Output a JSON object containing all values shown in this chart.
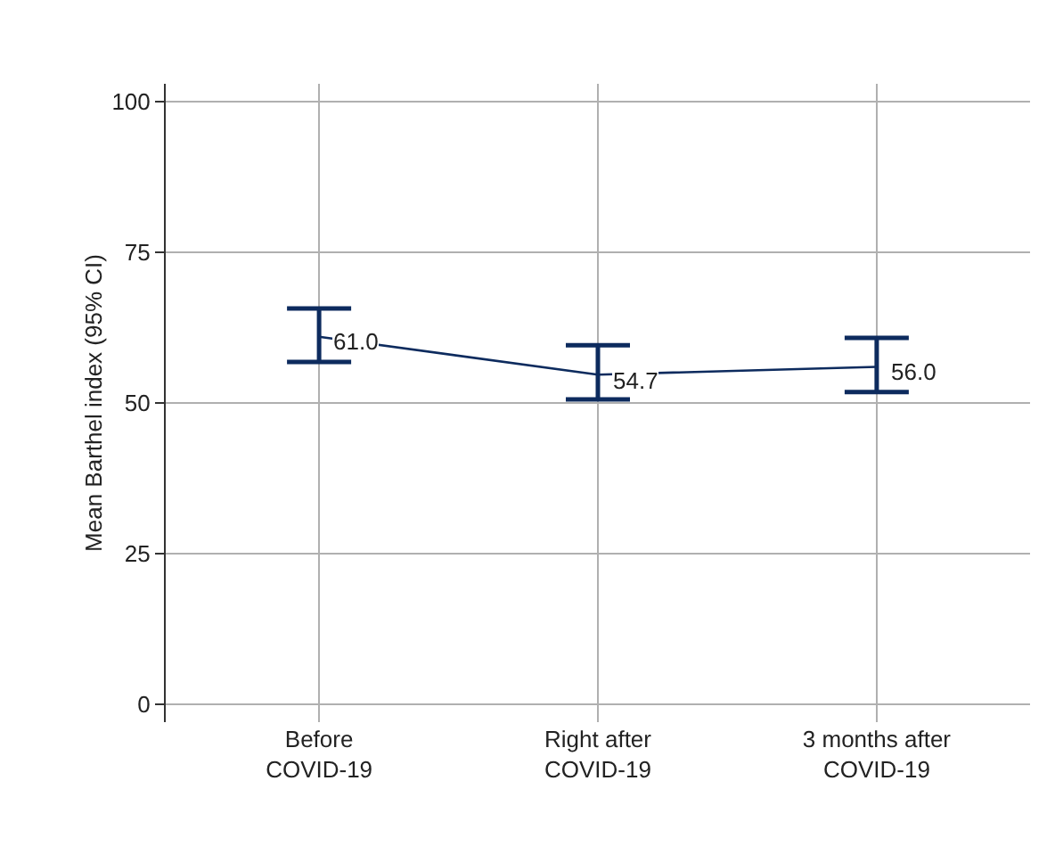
{
  "chart_data": {
    "type": "line",
    "ylabel": "Mean Barthel index (95% CI)",
    "categories": [
      "Before\nCOVID-19",
      "Right after\nCOVID-19",
      "3 months after\nCOVID-19"
    ],
    "values": [
      61.0,
      54.7,
      56.0
    ],
    "errors": [
      [
        56.8,
        65.7
      ],
      [
        50.6,
        59.6
      ],
      [
        51.8,
        60.8
      ]
    ],
    "color": "#0d2b5e",
    "marker": "none",
    "line_style": "solid",
    "value_labels": [
      "61.0",
      "54.7",
      "56.0"
    ],
    "ylim": [
      -3,
      103
    ],
    "yticks": [
      0,
      25,
      50,
      75,
      100
    ],
    "grid": true
  }
}
